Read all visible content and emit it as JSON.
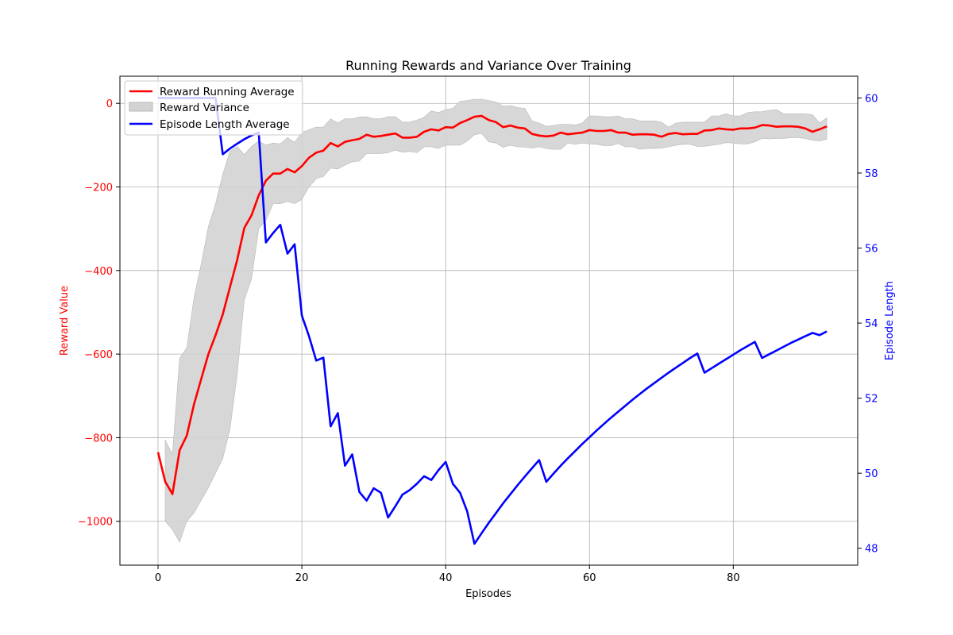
{
  "chart_data": {
    "type": "line",
    "title": "Running Rewards and Variance Over Training",
    "xlabel": "Episodes",
    "ylabel_left": "Reward Value",
    "ylabel_right": "Episode Length",
    "xlim": [
      -5.3,
      97.3
    ],
    "ylim_left": [
      -1105,
      65
    ],
    "ylim_right": [
      47.55,
      60.58
    ],
    "x_ticks": [
      0,
      20,
      40,
      60,
      80
    ],
    "y_ticks_left": [
      0,
      -200,
      -400,
      -600,
      -800,
      -1000
    ],
    "y_ticks_right": [
      48,
      50,
      52,
      54,
      56,
      58,
      60
    ],
    "y_tick_labels_left": [
      "0",
      "−200",
      "−400",
      "−600",
      "−800",
      "−1000"
    ],
    "x_tick_labels": [
      "0",
      "20",
      "40",
      "60",
      "80"
    ],
    "y_tick_labels_right": [
      "48",
      "50",
      "52",
      "54",
      "56",
      "58",
      "60"
    ],
    "grid": true,
    "legend_position": "upper-left",
    "colors": {
      "reward": "#ff0000",
      "episode_length": "#0000ff",
      "variance": "#d3d3d3",
      "variance_edge": "#b8b8b8",
      "grid": "#b0b0b0"
    },
    "legend": [
      {
        "label": "Reward Running Average",
        "kind": "line",
        "color": "#ff0000"
      },
      {
        "label": "Reward Variance",
        "kind": "patch",
        "color": "#d3d3d3"
      },
      {
        "label": "Episode Length Average",
        "kind": "line",
        "color": "#0000ff"
      }
    ],
    "series": [
      {
        "name": "Reward Running Average",
        "axis": "left",
        "x": [
          0,
          1,
          2,
          3,
          4,
          5,
          6,
          7,
          8,
          9,
          10,
          11,
          12,
          13,
          14,
          15,
          16,
          17,
          18,
          19,
          20,
          21,
          22,
          23,
          24,
          25,
          26,
          27,
          28,
          29,
          30,
          31,
          32,
          33,
          34,
          35,
          36,
          37,
          38,
          39,
          40,
          41,
          42,
          43,
          44,
          45,
          46,
          47,
          48,
          49,
          50,
          51,
          52,
          53,
          54,
          55,
          56,
          57,
          58,
          59,
          60,
          61,
          62,
          63,
          64,
          65,
          66,
          67,
          68,
          69,
          70,
          71,
          72,
          73,
          74,
          75,
          76,
          77,
          78,
          79,
          80,
          81,
          82,
          83,
          84,
          85,
          86,
          87,
          88,
          89,
          90,
          91,
          92,
          93
        ],
        "y": [
          -835,
          -905,
          -935,
          -830,
          -795,
          -720,
          -660,
          -600,
          -555,
          -505,
          -440,
          -375,
          -298,
          -268,
          -220,
          -185,
          -168,
          -168,
          -157,
          -165,
          -150,
          -130,
          -118,
          -113,
          -95,
          -103,
          -92,
          -88,
          -85,
          -75,
          -80,
          -78,
          -75,
          -72,
          -82,
          -82,
          -80,
          -68,
          -62,
          -65,
          -57,
          -58,
          -47,
          -40,
          -32,
          -30,
          -40,
          -45,
          -57,
          -53,
          -58,
          -60,
          -73,
          -77,
          -79,
          -77,
          -70,
          -74,
          -72,
          -70,
          -64,
          -66,
          -66,
          -64,
          -70,
          -70,
          -75,
          -74,
          -74,
          -75,
          -80,
          -73,
          -71,
          -74,
          -73,
          -73,
          -65,
          -64,
          -60,
          -62,
          -63,
          -60,
          -60,
          -58,
          -52,
          -53,
          -56,
          -55,
          -55,
          -56,
          -60,
          -68,
          -62,
          -55
        ]
      },
      {
        "name": "Reward Variance",
        "axis": "left",
        "kind": "band",
        "x": [
          1,
          2,
          3,
          4,
          5,
          6,
          7,
          8,
          9,
          10,
          11,
          12,
          13,
          14,
          15,
          16,
          17,
          18,
          19,
          20,
          21,
          22,
          23,
          24,
          25,
          26,
          27,
          28,
          29,
          30,
          31,
          32,
          33,
          34,
          35,
          36,
          37,
          38,
          39,
          40,
          41,
          42,
          43,
          44,
          45,
          46,
          47,
          48,
          49,
          50,
          51,
          52,
          53,
          54,
          55,
          56,
          57,
          58,
          59,
          60,
          61,
          62,
          63,
          64,
          65,
          66,
          67,
          68,
          69,
          70,
          71,
          72,
          73,
          74,
          75,
          76,
          77,
          78,
          79,
          80,
          81,
          82,
          83,
          84,
          85,
          86,
          87,
          88,
          89,
          90,
          91,
          92,
          93
        ],
        "upper": [
          -805,
          -840,
          -610,
          -585,
          -465,
          -385,
          -295,
          -240,
          -170,
          -115,
          -103,
          -123,
          -103,
          -90,
          -100,
          -95,
          -97,
          -82,
          -93,
          -70,
          -63,
          -57,
          -57,
          -37,
          -47,
          -37,
          -37,
          -33,
          -32,
          -37,
          -37,
          -32,
          -32,
          -45,
          -45,
          -40,
          -33,
          -18,
          -22,
          -15,
          -12,
          5,
          7,
          10,
          10,
          7,
          3,
          -7,
          -5,
          -10,
          -12,
          -42,
          -47,
          -55,
          -53,
          -50,
          -50,
          -52,
          -47,
          -30,
          -30,
          -32,
          -32,
          -30,
          -37,
          -37,
          -42,
          -42,
          -42,
          -45,
          -57,
          -47,
          -45,
          -45,
          -45,
          -45,
          -30,
          -30,
          -25,
          -30,
          -30,
          -22,
          -20,
          -20,
          -17,
          -15,
          -25,
          -25,
          -25,
          -25,
          -27,
          -47,
          -35
        ],
        "lower": [
          -1000,
          -1020,
          -1050,
          -1000,
          -980,
          -950,
          -920,
          -885,
          -850,
          -780,
          -650,
          -470,
          -420,
          -300,
          -280,
          -240,
          -240,
          -235,
          -240,
          -230,
          -200,
          -180,
          -175,
          -155,
          -157,
          -148,
          -140,
          -138,
          -120,
          -120,
          -120,
          -118,
          -112,
          -117,
          -115,
          -118,
          -104,
          -104,
          -108,
          -100,
          -100,
          -100,
          -90,
          -75,
          -72,
          -92,
          -95,
          -105,
          -100,
          -104,
          -105,
          -107,
          -104,
          -108,
          -110,
          -110,
          -95,
          -98,
          -95,
          -97,
          -98,
          -101,
          -101,
          -96,
          -104,
          -104,
          -110,
          -108,
          -108,
          -107,
          -104,
          -100,
          -98,
          -98,
          -103,
          -103,
          -100,
          -98,
          -94,
          -95,
          -97,
          -97,
          -92,
          -84,
          -85,
          -84,
          -84,
          -82,
          -82,
          -84,
          -88,
          -90,
          -86
        ]
      },
      {
        "name": "Episode Length Average",
        "axis": "right",
        "x": [
          0,
          1,
          2,
          3,
          4,
          5,
          6,
          7,
          8,
          9,
          10,
          11,
          12,
          13,
          14,
          15,
          16,
          17,
          18,
          19,
          20,
          21,
          22,
          23,
          24,
          25,
          26,
          27,
          28,
          29,
          30,
          31,
          32,
          33,
          34,
          35,
          36,
          37,
          38,
          39,
          40,
          41,
          42,
          43,
          44,
          45,
          46,
          47,
          48,
          49,
          50,
          51,
          52,
          53,
          54,
          55,
          56,
          57,
          58,
          59,
          60,
          61,
          62,
          63,
          64,
          65,
          66,
          67,
          68,
          69,
          70,
          71,
          72,
          73,
          74,
          75,
          76,
          77,
          78,
          79,
          80,
          81,
          82,
          83,
          84,
          85,
          86,
          87,
          88,
          89,
          90,
          91,
          92,
          93
        ],
        "y": [
          60,
          60,
          60,
          60,
          60,
          60,
          60,
          60,
          60,
          58.5,
          58.65,
          58.78,
          58.9,
          59.0,
          59.08,
          56.15,
          56.4,
          56.62,
          55.85,
          56.1,
          54.2,
          53.65,
          53.0,
          53.08,
          51.25,
          51.6,
          50.2,
          50.5,
          49.5,
          49.27,
          49.6,
          49.48,
          48.82,
          49.12,
          49.43,
          49.55,
          49.72,
          49.92,
          49.82,
          50.08,
          50.3,
          49.72,
          49.48,
          48.98,
          48.12,
          48.4,
          48.68,
          48.94,
          49.2,
          49.44,
          49.68,
          49.91,
          50.13,
          50.35,
          49.77,
          49.99,
          50.2,
          50.4,
          50.59,
          50.78,
          50.96,
          51.14,
          51.31,
          51.48,
          51.64,
          51.8,
          51.96,
          52.11,
          52.26,
          52.4,
          52.54,
          52.68,
          52.81,
          52.94,
          53.07,
          53.19,
          52.68,
          52.8,
          52.92,
          53.04,
          53.16,
          53.28,
          53.39,
          53.5,
          53.07,
          53.17,
          53.27,
          53.37,
          53.47,
          53.56,
          53.65,
          53.74,
          53.68,
          53.78
        ]
      }
    ]
  }
}
